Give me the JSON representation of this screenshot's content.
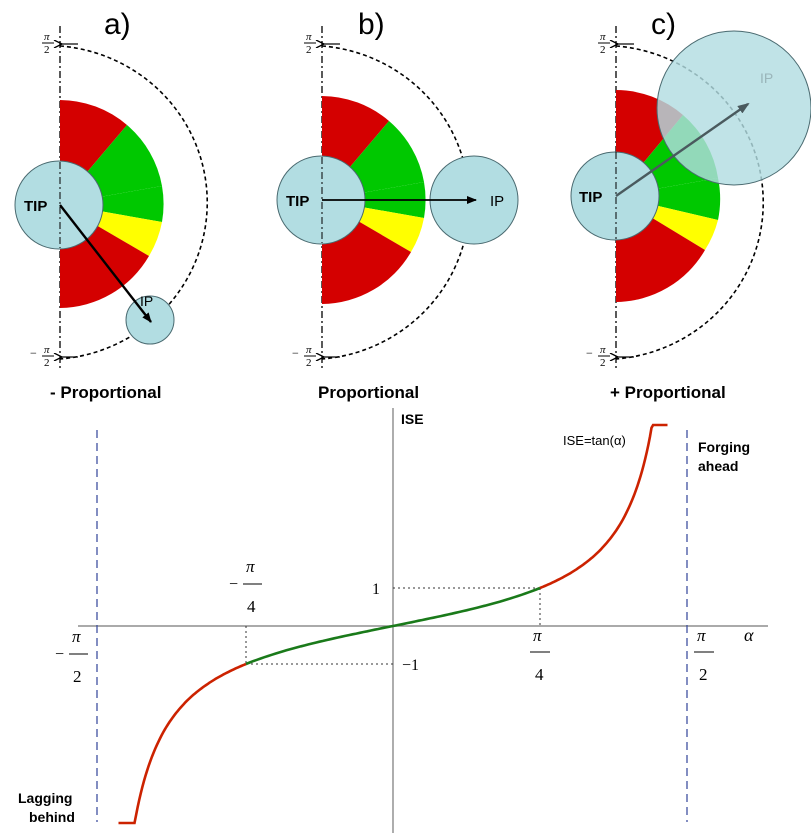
{
  "panels": [
    {
      "letter": "a)",
      "caption": "- Proportional",
      "tip": "TIP",
      "ip": "IP"
    },
    {
      "letter": "b)",
      "caption": "Proportional",
      "tip": "TIP",
      "ip": "IP"
    },
    {
      "letter": "c)",
      "caption": "+ Proportional",
      "tip": "TIP",
      "ip": "IP"
    }
  ],
  "pi_frac": {
    "num": "π",
    "den": "2",
    "neg": "−"
  },
  "graph": {
    "y_axis_label": "ISE",
    "x_axis_label": "α",
    "curve_label": "ISE=tan(α)",
    "forging": [
      "Forging",
      "ahead"
    ],
    "lagging": [
      "Lagging",
      "behind"
    ],
    "tick_one": "1",
    "tick_neg_one": "−1",
    "pi": "π",
    "four": "4",
    "two": "2",
    "minus": "−"
  },
  "colors": {
    "red": "#d40000",
    "green": "#00c800",
    "yellow": "#ffff00",
    "circle": "#b2dde2",
    "curve_red": "#cc2200",
    "curve_green": "#1a7a1a",
    "asymptote": "#4050a0"
  }
}
